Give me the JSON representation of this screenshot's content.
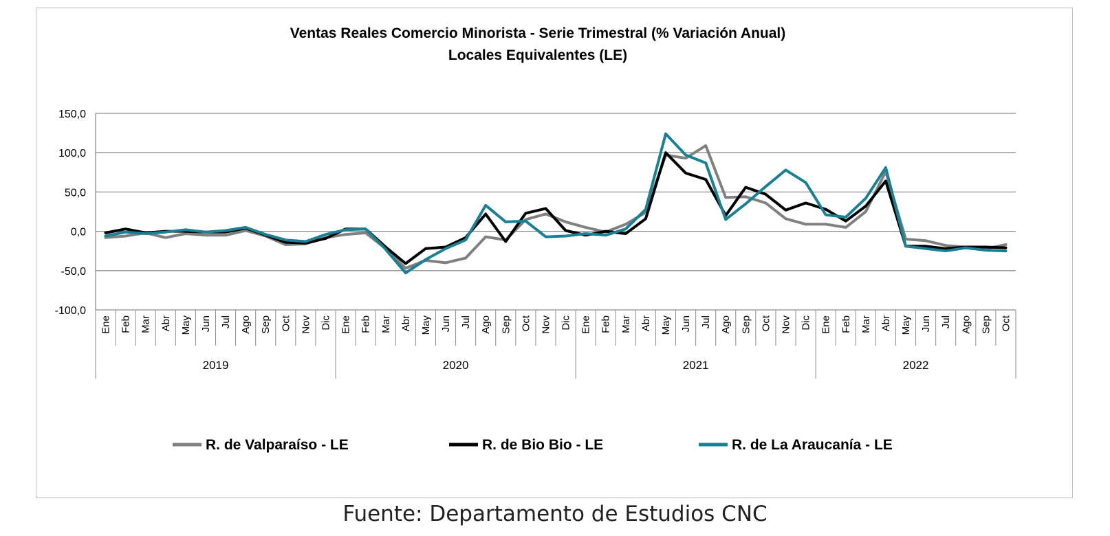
{
  "chart_data": {
    "type": "line",
    "title": "Ventas Reales Comercio Minorista - Serie Trimestral (% Variación Anual)",
    "subtitle": "Locales Equivalentes (LE)",
    "ylim": [
      -100,
      150
    ],
    "yticks": [
      "150,0",
      "100,0",
      "50,0",
      "0,0",
      "-50,0",
      "-100,0"
    ],
    "ytick_values": [
      150,
      100,
      50,
      0,
      -50,
      -100
    ],
    "grid": true,
    "legend_position": "bottom",
    "years": [
      {
        "label": "2019",
        "months": 12
      },
      {
        "label": "2020",
        "months": 12
      },
      {
        "label": "2021",
        "months": 12
      },
      {
        "label": "2022",
        "months": 10
      }
    ],
    "categories": [
      "Ene",
      "Feb",
      "Mar",
      "Abr",
      "May",
      "Jun",
      "Jul",
      "Ago",
      "Sep",
      "Oct",
      "Nov",
      "Dic",
      "Ene",
      "Feb",
      "Mar",
      "Abr",
      "May",
      "Jun",
      "Jul",
      "Ago",
      "Sep",
      "Oct",
      "Nov",
      "Dic",
      "Ene",
      "Feb",
      "Mar",
      "Abr",
      "May",
      "Jun",
      "Jul",
      "Ago",
      "Sep",
      "Oct",
      "Nov",
      "Dic",
      "Ene",
      "Feb",
      "Mar",
      "Abr",
      "May",
      "Jun",
      "Jul",
      "Ago",
      "Sep",
      "Oct"
    ],
    "series": [
      {
        "name": "R. de Valparaíso - LE",
        "color": "#808080",
        "values": [
          -8,
          -6,
          -2,
          -8,
          -3,
          -5,
          -5,
          1,
          -6,
          -17,
          -16,
          -8,
          -4,
          -2,
          -22,
          -47,
          -37,
          -40,
          -34,
          -7,
          -11,
          15,
          22,
          12,
          5,
          -1,
          9,
          24,
          97,
          93,
          109,
          43,
          44,
          36,
          16,
          9,
          9,
          5,
          25,
          76,
          -10,
          -12,
          -18,
          -20,
          -22,
          -17
        ]
      },
      {
        "name": "R. de Bio Bio - LE",
        "color": "#000000",
        "values": [
          -2,
          3,
          -2,
          0,
          0,
          -1,
          -1,
          4,
          -5,
          -14,
          -15,
          -9,
          3,
          3,
          -20,
          -41,
          -22,
          -20,
          -8,
          22,
          -13,
          23,
          29,
          1,
          -5,
          0,
          -3,
          16,
          100,
          74,
          66,
          20,
          56,
          47,
          27,
          36,
          28,
          13,
          32,
          64,
          -19,
          -19,
          -22,
          -20,
          -20,
          -21
        ]
      },
      {
        "name": "R. de La Araucanía - LE",
        "color": "#1a8094",
        "values": [
          -6,
          -1,
          -3,
          -1,
          2,
          -1,
          1,
          5,
          -4,
          -11,
          -13,
          -4,
          2,
          3,
          -23,
          -53,
          -36,
          -22,
          -11,
          33,
          12,
          13,
          -7,
          -6,
          -3,
          -5,
          3,
          28,
          124,
          97,
          87,
          15,
          35,
          57,
          78,
          62,
          21,
          18,
          42,
          81,
          -19,
          -22,
          -25,
          -21,
          -24,
          -25
        ]
      }
    ]
  },
  "source": "Fuente: Departamento de Estudios CNC"
}
